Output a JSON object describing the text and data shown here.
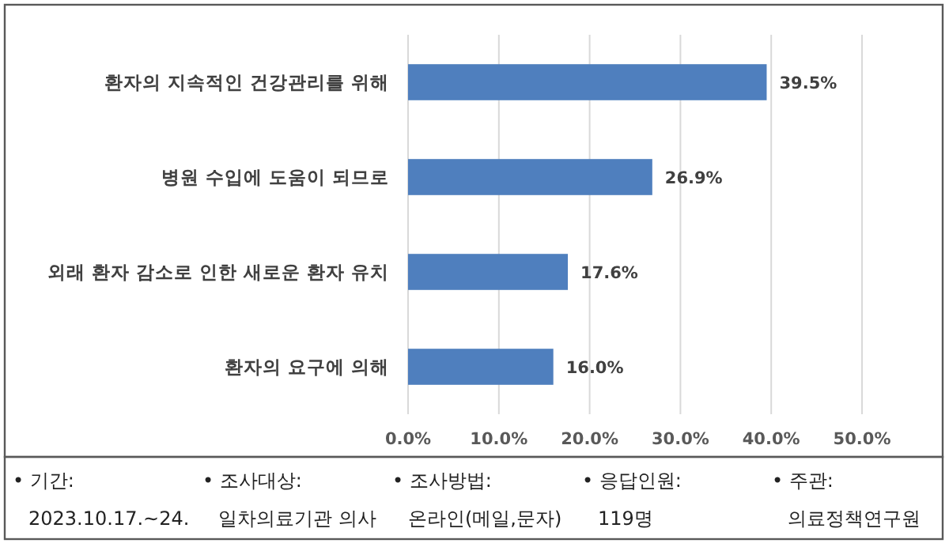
{
  "chart_data": {
    "type": "bar",
    "orientation": "horizontal",
    "categories": [
      "환자의 지속적인 건강관리를 위해",
      "병원 수입에 도움이 되므로",
      "외래 환자 감소로 인한 새로운 환자 유치",
      "환자의 요구에 의해"
    ],
    "values": [
      39.5,
      26.9,
      17.6,
      16.0
    ],
    "value_labels": [
      "39.5%",
      "26.9%",
      "17.6%",
      "16.0%"
    ],
    "color": "#4f7fbe",
    "xlim": [
      0,
      50
    ],
    "xticks": [
      {
        "value": 0,
        "label": "0.0%"
      },
      {
        "value": 10,
        "label": "10.0%"
      },
      {
        "value": 20,
        "label": "20.0%"
      },
      {
        "value": 30,
        "label": "30.0%"
      },
      {
        "value": 40,
        "label": "40.0%"
      },
      {
        "value": 50,
        "label": "50.0%"
      }
    ],
    "grid": "x",
    "annotations": [
      "• 기간:",
      "2023.10.17.~24.",
      "• 조사대상:",
      "일차의료기관 의사",
      "• 조사방법:",
      "온라인(메일,문자)",
      "• 응답인원:",
      "119명",
      "• 주관:",
      "의료정책연구원"
    ]
  }
}
